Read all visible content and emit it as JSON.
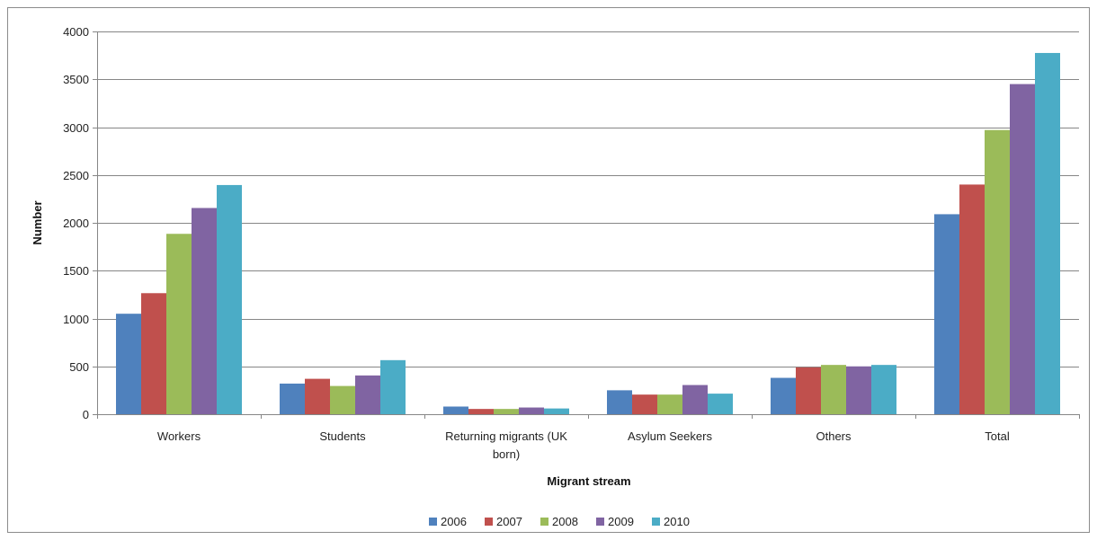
{
  "chart_data": {
    "type": "bar",
    "title": "",
    "xlabel": "Migrant stream",
    "ylabel": "Number",
    "ylim": [
      0,
      4000
    ],
    "yticks": [
      0,
      500,
      1000,
      1500,
      2000,
      2500,
      3000,
      3500,
      4000
    ],
    "grid": "horizontal",
    "legend_position": "bottom",
    "categories": [
      [
        "Workers"
      ],
      [
        "Students"
      ],
      [
        "Returning migrants (UK",
        "born)"
      ],
      [
        "Asylum Seekers"
      ],
      [
        "Others"
      ],
      [
        "Total"
      ]
    ],
    "series": [
      {
        "name": "2006",
        "color": "#4F81BD",
        "values": [
          1050,
          320,
          80,
          250,
          380,
          2090
        ]
      },
      {
        "name": "2007",
        "color": "#C0504D",
        "values": [
          1265,
          370,
          55,
          205,
          490,
          2400
        ]
      },
      {
        "name": "2008",
        "color": "#9BBB59",
        "values": [
          1885,
          295,
          55,
          205,
          515,
          2970
        ]
      },
      {
        "name": "2009",
        "color": "#8064A2",
        "values": [
          2155,
          405,
          70,
          305,
          500,
          3450
        ]
      },
      {
        "name": "2010",
        "color": "#4BACC6",
        "values": [
          2395,
          565,
          60,
          215,
          515,
          3775
        ]
      }
    ]
  }
}
